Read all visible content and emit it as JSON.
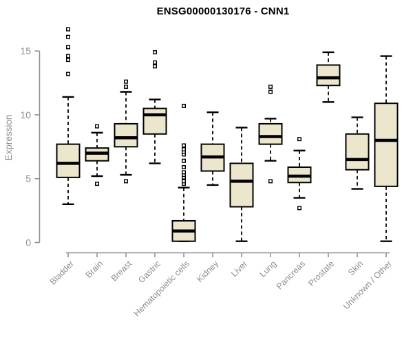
{
  "title": "ENSG00000130176 - CNN1",
  "chart_data": {
    "type": "boxplot",
    "title": "ENSG00000130176 - CNN1",
    "xlabel": "",
    "ylabel": "Expression",
    "ylim": [
      0,
      16.8
    ],
    "yticks": [
      0,
      5,
      10,
      15
    ],
    "grid": false,
    "legend": "none",
    "categories": [
      "Bladder",
      "Brain",
      "Breast",
      "Gastric",
      "Hematopoietic cells",
      "Kidney",
      "Liver",
      "Lung",
      "Pancreas",
      "Prostate",
      "Skin",
      "Unknown / Other"
    ],
    "series": [
      {
        "name": "Bladder",
        "whisker_low": 3.0,
        "q1": 5.1,
        "median": 6.2,
        "q3": 7.7,
        "whisker_high": 11.4,
        "outliers": [
          13.2,
          14.3,
          14.6,
          15.3,
          16.1,
          16.7
        ]
      },
      {
        "name": "Brain",
        "whisker_low": 5.2,
        "q1": 6.4,
        "median": 7.0,
        "q3": 7.4,
        "whisker_high": 8.6,
        "outliers": [
          4.6,
          9.1
        ]
      },
      {
        "name": "Breast",
        "whisker_low": 5.3,
        "q1": 7.5,
        "median": 8.2,
        "q3": 9.3,
        "whisker_high": 11.8,
        "outliers": [
          4.8,
          12.2,
          12.6
        ]
      },
      {
        "name": "Gastric",
        "whisker_low": 6.2,
        "q1": 8.5,
        "median": 10.0,
        "q3": 10.5,
        "whisker_high": 11.2,
        "outliers": [
          13.8,
          14.1,
          14.9
        ]
      },
      {
        "name": "Hematopoietic cells",
        "whisker_low": 0.1,
        "q1": 0.1,
        "median": 0.9,
        "q3": 1.7,
        "whisker_high": 4.3,
        "outliers": [
          4.6,
          4.8,
          5.1,
          5.3,
          5.5,
          5.9,
          6.4,
          6.9,
          7.1,
          7.3,
          7.6,
          10.7
        ]
      },
      {
        "name": "Kidney",
        "whisker_low": 4.5,
        "q1": 5.6,
        "median": 6.7,
        "q3": 7.7,
        "whisker_high": 10.2,
        "outliers": []
      },
      {
        "name": "Liver",
        "whisker_low": 0.1,
        "q1": 2.8,
        "median": 4.8,
        "q3": 6.2,
        "whisker_high": 9.0,
        "outliers": []
      },
      {
        "name": "Lung",
        "whisker_low": 6.4,
        "q1": 7.7,
        "median": 8.3,
        "q3": 9.3,
        "whisker_high": 9.7,
        "outliers": [
          4.8,
          11.8,
          12.2
        ]
      },
      {
        "name": "Pancreas",
        "whisker_low": 3.5,
        "q1": 4.7,
        "median": 5.2,
        "q3": 5.9,
        "whisker_high": 7.2,
        "outliers": [
          2.7,
          8.1
        ]
      },
      {
        "name": "Prostate",
        "whisker_low": 11.0,
        "q1": 12.3,
        "median": 12.9,
        "q3": 13.9,
        "whisker_high": 14.9,
        "outliers": []
      },
      {
        "name": "Skin",
        "whisker_low": 4.2,
        "q1": 5.7,
        "median": 6.5,
        "q3": 8.5,
        "whisker_high": 9.8,
        "outliers": []
      },
      {
        "name": "Unknown / Other",
        "whisker_low": 0.1,
        "q1": 4.4,
        "median": 8.0,
        "q3": 10.9,
        "whisker_high": 14.6,
        "outliers": []
      }
    ],
    "colors": {
      "box_fill": "#ece7cc",
      "box_stroke": "#000000",
      "median": "#000000",
      "whisker": "#000000",
      "axis": "#8c8c8c",
      "tick_label": "#8e8e8e",
      "title": "#000000",
      "background": "#ffffff"
    }
  }
}
